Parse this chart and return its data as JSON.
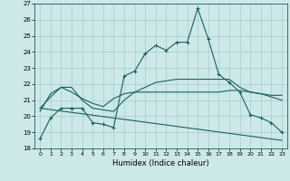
{
  "xlabel": "Humidex (Indice chaleur)",
  "bg_color": "#cce8e8",
  "grid_color": "#aacccc",
  "line_color": "#1a6060",
  "xlim": [
    -0.5,
    23.5
  ],
  "ylim": [
    18,
    27
  ],
  "yticks": [
    18,
    19,
    20,
    21,
    22,
    23,
    24,
    25,
    26,
    27
  ],
  "xticks": [
    0,
    1,
    2,
    3,
    4,
    5,
    6,
    7,
    8,
    9,
    10,
    11,
    12,
    13,
    14,
    15,
    16,
    17,
    18,
    19,
    20,
    21,
    22,
    23
  ],
  "series1_x": [
    0,
    1,
    2,
    3,
    4,
    5,
    6,
    7,
    8,
    9,
    10,
    11,
    12,
    13,
    14,
    15,
    16,
    17,
    18,
    19,
    20,
    21,
    22,
    23
  ],
  "series1_y": [
    18.6,
    19.9,
    20.5,
    20.5,
    20.5,
    19.6,
    19.5,
    19.3,
    22.5,
    22.8,
    23.9,
    24.4,
    24.1,
    24.6,
    24.6,
    26.7,
    24.8,
    22.6,
    22.1,
    21.5,
    20.1,
    19.9,
    19.6,
    19.0
  ],
  "series2_x": [
    0,
    1,
    2,
    3,
    4,
    5,
    6,
    7,
    8,
    9,
    10,
    11,
    12,
    13,
    14,
    15,
    16,
    17,
    18,
    19,
    20,
    21,
    22,
    23
  ],
  "series2_y": [
    20.5,
    21.2,
    21.8,
    21.5,
    21.1,
    20.8,
    20.6,
    21.1,
    21.4,
    21.5,
    21.5,
    21.5,
    21.5,
    21.5,
    21.5,
    21.5,
    21.5,
    21.5,
    21.6,
    21.6,
    21.5,
    21.4,
    21.3,
    21.3
  ],
  "series3_x": [
    0,
    1,
    2,
    3,
    4,
    5,
    6,
    7,
    8,
    9,
    10,
    11,
    12,
    13,
    14,
    15,
    16,
    17,
    18,
    19,
    20,
    21,
    22,
    23
  ],
  "series3_y": [
    20.3,
    21.4,
    21.8,
    21.8,
    21.0,
    20.5,
    20.4,
    20.3,
    21.0,
    21.5,
    21.8,
    22.1,
    22.2,
    22.3,
    22.3,
    22.3,
    22.3,
    22.3,
    22.3,
    21.8,
    21.5,
    21.4,
    21.2,
    21.0
  ],
  "series4_x": [
    0,
    23
  ],
  "series4_y": [
    20.5,
    18.5
  ]
}
